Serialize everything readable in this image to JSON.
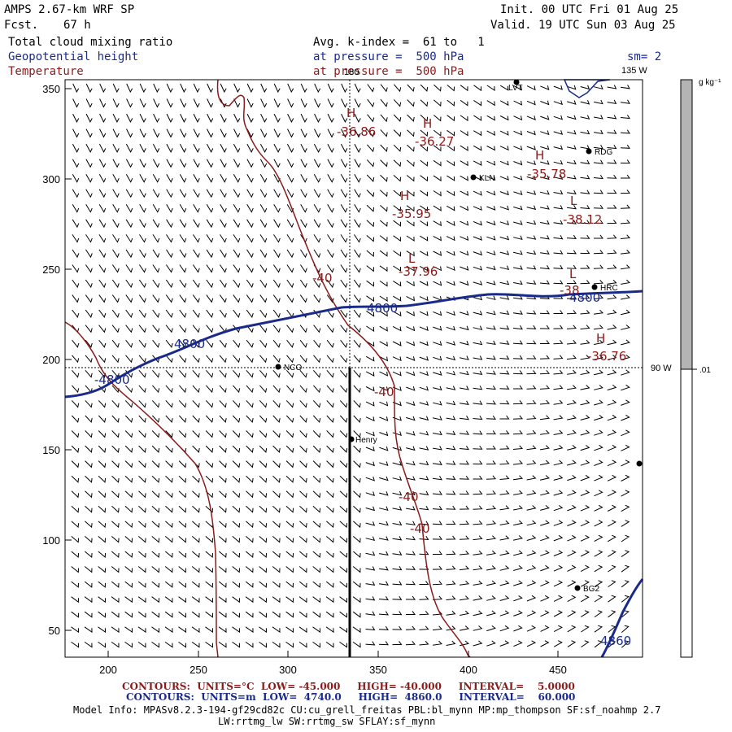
{
  "header": {
    "model": "AMPS 2.67-km WRF SP",
    "fcst_label": "Fcst.",
    "fcst_value": "67 h",
    "init": "Init. 00 UTC Fri 01 Aug 25",
    "valid": "Valid. 19 UTC Sun 03 Aug 25",
    "field1": "Total cloud mixing ratio",
    "field2": "Geopotential height",
    "field3": "Temperature",
    "avg": "Avg. k-index =  61 to   1",
    "press1": "at pressure =  500 hPa",
    "press2": "at pressure =  500 hPa",
    "sm": "sm= 2"
  },
  "map": {
    "lon_top": "180",
    "lon_top_right": "135 W",
    "lon_right": "90 W",
    "x_ticks": [
      "200",
      "250",
      "300",
      "350",
      "400",
      "450"
    ],
    "y_ticks": [
      "50",
      "100",
      "150",
      "200",
      "250",
      "300",
      "350"
    ],
    "stations": [
      {
        "name": "LVT"
      },
      {
        "name": "RDG"
      },
      {
        "name": "KLN"
      },
      {
        "name": "HRC"
      },
      {
        "name": "NCO"
      },
      {
        "name": "Henry"
      },
      {
        "name": "BG2"
      },
      {
        "name": ""
      }
    ],
    "pressure_centers": [
      {
        "type": "H",
        "value": "-36.86"
      },
      {
        "type": "H",
        "value": "-36.27"
      },
      {
        "type": "H",
        "value": "-35.78"
      },
      {
        "type": "H",
        "value": "-35.95"
      },
      {
        "type": "L",
        "value": "-38.12"
      },
      {
        "type": "L",
        "value": "-37.96"
      },
      {
        "type": "L",
        "value": "-38"
      },
      {
        "type": "H",
        "value": "-36.76"
      }
    ],
    "temp_labels": [
      "-40",
      "-40",
      "-40",
      "-40"
    ],
    "height_labels": [
      "4800",
      "4800",
      "4800",
      "-4800",
      "4860"
    ]
  },
  "colorbar": {
    "units": "g kg⁻¹",
    "tick": ".01",
    "color_top": "#b4b4b4",
    "color_bottom": "#ffffff"
  },
  "footer": {
    "c1_contours": "CONTOURS:",
    "c1_units": "UNITS=°C",
    "c1_low": "LOW= -45.000",
    "c1_high": "HIGH= -40.000",
    "c1_interval": "INTERVAL=    5.0000",
    "c2_contours": "CONTOURS:",
    "c2_units": "UNITS=m",
    "c2_low": "LOW=  4740.0",
    "c2_high": "HIGH=  4860.0",
    "c2_interval": "INTERVAL=    60.000",
    "model_info_1": "Model Info: MPASv8.2.3-194-gf29cd82c CU:cu_grell_freitas PBL:bl_mynn MP:mp_thompson SF:sf_noahmp 2.7",
    "model_info_2": "LW:rrtmg_lw SW:rrtmg_sw SFLAY:sf_mynn"
  },
  "colors": {
    "temperature": "#8b1a1a",
    "height": "#1a2a8a",
    "frame": "#000000"
  }
}
